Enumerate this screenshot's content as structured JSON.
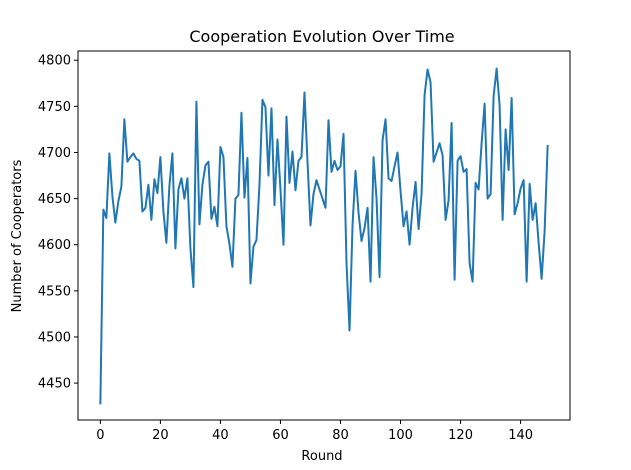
{
  "chart_data": {
    "type": "line",
    "title": "Cooperation Evolution Over Time",
    "xlabel": "Round",
    "ylabel": "Number of Cooperators",
    "xlim": [
      -7.45,
      156.45
    ],
    "ylim": [
      4410,
      4810
    ],
    "xticks": [
      0,
      20,
      40,
      60,
      80,
      100,
      120,
      140
    ],
    "yticks": [
      4450,
      4500,
      4550,
      4600,
      4650,
      4700,
      4750,
      4800
    ],
    "grid": false,
    "line_color": "#1f77b4",
    "series": [
      {
        "values": [
          4428,
          4638,
          4629,
          4699,
          4653,
          4624,
          4647,
          4663,
          4736,
          4690,
          4695,
          4699,
          4693,
          4691,
          4636,
          4640,
          4665,
          4627,
          4671,
          4656,
          4695,
          4636,
          4602,
          4664,
          4699,
          4596,
          4660,
          4672,
          4650,
          4672,
          4596,
          4554,
          4755,
          4622,
          4665,
          4686,
          4690,
          4628,
          4641,
          4620,
          4706,
          4695,
          4620,
          4601,
          4576,
          4650,
          4654,
          4743,
          4651,
          4694,
          4558,
          4598,
          4605,
          4665,
          4757,
          4749,
          4675,
          4748,
          4643,
          4714,
          4660,
          4600,
          4739,
          4667,
          4701,
          4659,
          4691,
          4695,
          4765,
          4690,
          4621,
          4655,
          4670,
          4660,
          4650,
          4640,
          4735,
          4679,
          4691,
          4681,
          4685,
          4720,
          4580,
          4507,
          4621,
          4680,
          4635,
          4604,
          4618,
          4640,
          4560,
          4695,
          4650,
          4565,
          4713,
          4736,
          4672,
          4669,
          4685,
          4700,
          4658,
          4620,
          4636,
          4600,
          4640,
          4668,
          4617,
          4655,
          4762,
          4790,
          4776,
          4690,
          4700,
          4710,
          4697,
          4627,
          4648,
          4732,
          4562,
          4691,
          4696,
          4679,
          4682,
          4580,
          4560,
          4667,
          4660,
          4710,
          4753,
          4650,
          4655,
          4761,
          4791,
          4751,
          4627,
          4725,
          4681,
          4759,
          4633,
          4645,
          4661,
          4670,
          4560,
          4666,
          4627,
          4645,
          4602,
          4563,
          4615,
          4707
        ]
      }
    ]
  }
}
